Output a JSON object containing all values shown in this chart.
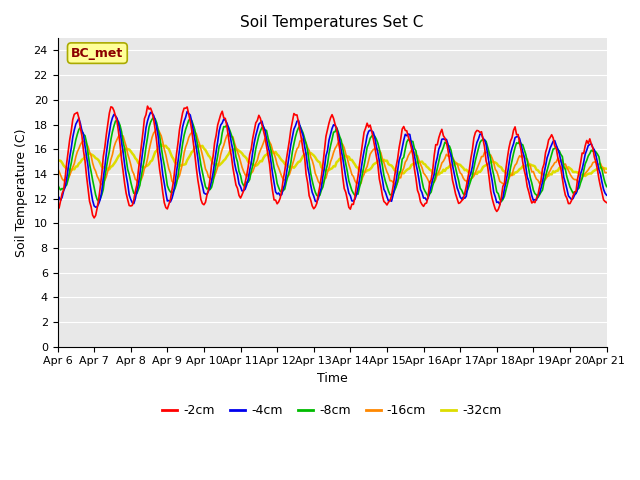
{
  "title": "Soil Temperatures Set C",
  "xlabel": "Time",
  "ylabel": "Soil Temperature (C)",
  "ylim": [
    0,
    25
  ],
  "yticks": [
    0,
    2,
    4,
    6,
    8,
    10,
    12,
    14,
    16,
    18,
    20,
    22,
    24
  ],
  "x_labels": [
    "Apr 6",
    "Apr 7",
    "Apr 8",
    "Apr 9",
    "Apr 10",
    "Apr 11",
    "Apr 12",
    "Apr 13",
    "Apr 14",
    "Apr 15",
    "Apr 16",
    "Apr 17",
    "Apr 18",
    "Apr 19",
    "Apr 20",
    "Apr 21"
  ],
  "annotation_text": "BC_met",
  "annotation_color": "#8B0000",
  "annotation_bg": "#FFFF99",
  "annotation_edge": "#AAAA00",
  "bg_color": "#E8E8E8",
  "series": {
    "-2cm": {
      "color": "#FF0000",
      "lw": 1.2
    },
    "-4cm": {
      "color": "#0000EE",
      "lw": 1.2
    },
    "-8cm": {
      "color": "#00BB00",
      "lw": 1.2
    },
    "-16cm": {
      "color": "#FF8800",
      "lw": 1.2
    },
    "-32cm": {
      "color": "#DDDD00",
      "lw": 1.8
    }
  },
  "n_days": 15,
  "samples_per_day": 24
}
